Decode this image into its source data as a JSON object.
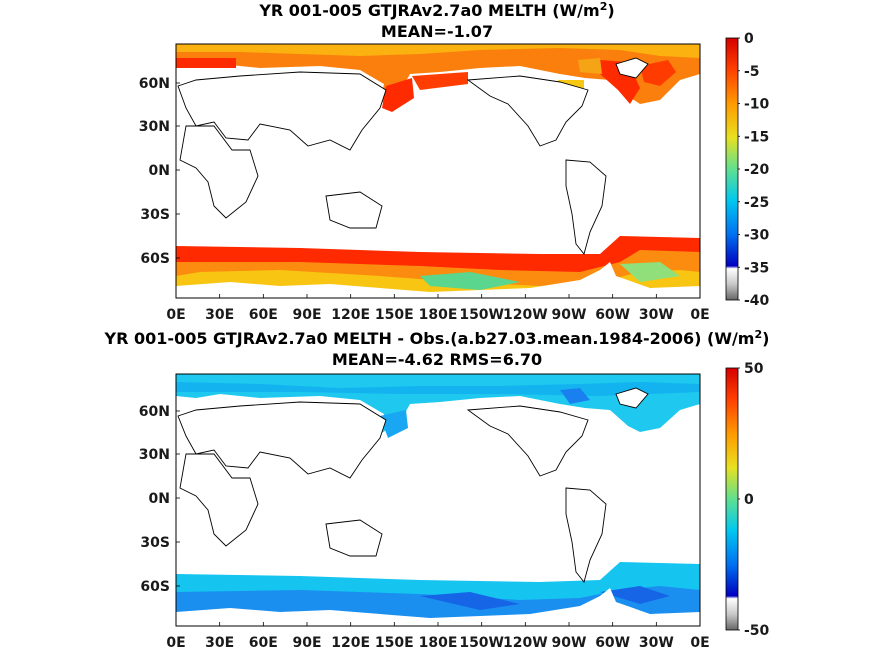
{
  "chart_data": [
    {
      "type": "heatmap",
      "title_line1": "YR 001-005 GTJRAv2.7a0  MELTH (W/m",
      "title_sup": "2",
      "title_line1_end": ")",
      "title_line2": "MEAN=-1.07",
      "x_ticks": [
        "0E",
        "30E",
        "60E",
        "90E",
        "120E",
        "150E",
        "180E",
        "150W",
        "120W",
        "90W",
        "60W",
        "30W",
        "0E"
      ],
      "y_ticks": [
        "60N",
        "30N",
        "0N",
        "30S",
        "60S"
      ],
      "colorbar": {
        "range": [
          -40,
          0
        ],
        "ticks": [
          "0",
          "-5",
          "-10",
          "-15",
          "-20",
          "-25",
          "-30",
          "-35",
          "-40"
        ]
      }
    },
    {
      "type": "heatmap",
      "title_line1": "YR 001-005 GTJRAv2.7a0 MELTH - Obs.(a.b27.03.mean.1984-2006) (W/m",
      "title_sup": "2",
      "title_line1_end": ")",
      "title_line2": "MEAN=-4.62 RMS=6.70",
      "x_ticks": [
        "0E",
        "30E",
        "60E",
        "90E",
        "120E",
        "150E",
        "180E",
        "150W",
        "120W",
        "90W",
        "60W",
        "30W",
        "0E"
      ],
      "y_ticks": [
        "60N",
        "30N",
        "0N",
        "30S",
        "60S"
      ],
      "colorbar": {
        "range": [
          -50,
          50
        ],
        "ticks": [
          "50",
          "0",
          "-50"
        ]
      }
    }
  ]
}
